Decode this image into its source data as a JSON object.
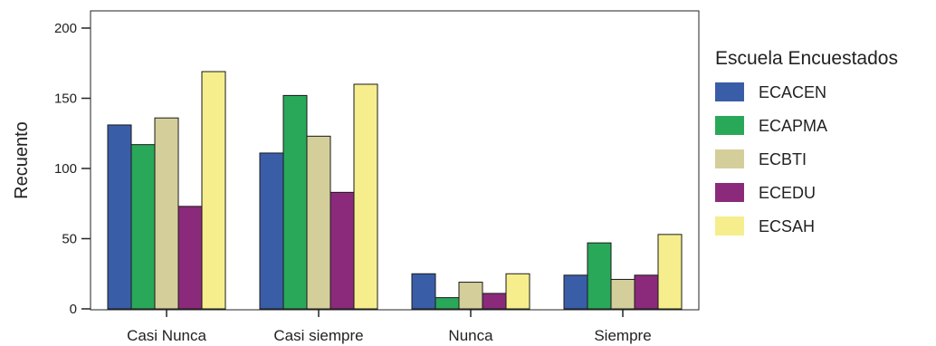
{
  "chart_data": {
    "type": "bar",
    "title": "",
    "xlabel": "",
    "ylabel": "Recuento",
    "ylim": [
      0,
      200
    ],
    "yticks": [
      0,
      50,
      100,
      150,
      200
    ],
    "grid": false,
    "legend_position": "right",
    "legend_title": "Escuela Encuestados",
    "categories": [
      "Casi Nunca",
      "Casi siempre",
      "Nunca",
      "Siempre"
    ],
    "series": [
      {
        "name": "ECACEN",
        "color": "#3a5da8",
        "values": [
          131,
          111,
          25,
          24
        ]
      },
      {
        "name": "ECAPMA",
        "color": "#2aa85a",
        "values": [
          117,
          152,
          8,
          47
        ]
      },
      {
        "name": "ECBTI",
        "color": "#d4cf9a",
        "values": [
          136,
          123,
          19,
          21
        ]
      },
      {
        "name": "ECEDU",
        "color": "#8b2a7a",
        "values": [
          73,
          83,
          11,
          24
        ]
      },
      {
        "name": "ECSAH",
        "color": "#f6ee8c",
        "values": [
          169,
          160,
          25,
          53
        ]
      }
    ]
  }
}
